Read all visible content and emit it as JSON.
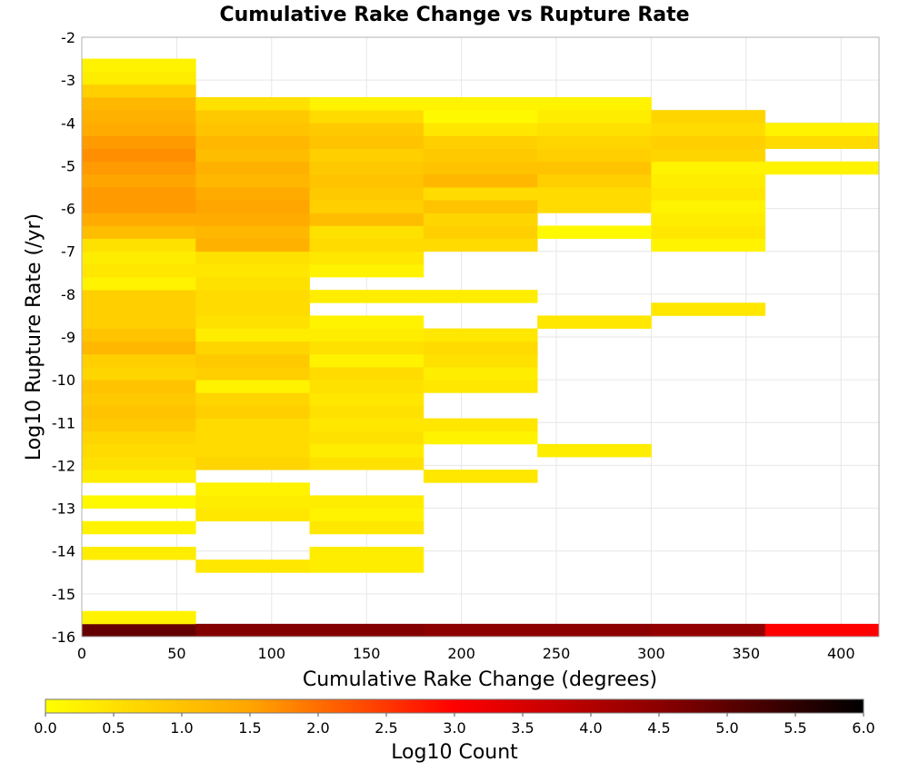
{
  "chart_data": {
    "type": "heatmap",
    "title": "Cumulative Rake Change vs Rupture Rate",
    "xlabel": "Cumulative Rake Change (degrees)",
    "ylabel": "Log10 Rupture Rate (/yr)",
    "xlim": [
      0,
      420
    ],
    "ylim": [
      -16,
      -2
    ],
    "xticks": [
      "0",
      "50",
      "100",
      "150",
      "200",
      "250",
      "300",
      "350",
      "400"
    ],
    "yticks": [
      "-2",
      "-3",
      "-4",
      "-5",
      "-6",
      "-7",
      "-8",
      "-9",
      "-10",
      "-11",
      "-12",
      "-13",
      "-14",
      "-15",
      "-16"
    ],
    "grid": true,
    "x_bin_width": 60,
    "y_bin_height": 0.3,
    "colorbar": {
      "label": "Log10 Count",
      "range": [
        0,
        6
      ],
      "ticks": [
        "0.0",
        "0.5",
        "1.0",
        "1.5",
        "2.0",
        "2.5",
        "3.0",
        "3.5",
        "4.0",
        "4.5",
        "5.0",
        "5.5",
        "6.0"
      ],
      "colors": [
        "#ffff00",
        "#ffa500",
        "#ff0000",
        "#8b0000",
        "#000000"
      ],
      "placement": "bottom"
    },
    "cells_note": "each column: [x_bin_start, [[y_bin_bottom, log10_count], ...]]",
    "cells": [
      [
        0,
        [
          [
            -16.0,
            4.9
          ],
          [
            -15.7,
            0.2
          ],
          [
            -14.2,
            0.3
          ],
          [
            -13.6,
            0.2
          ],
          [
            -13.0,
            0.1
          ],
          [
            -12.4,
            0.3
          ],
          [
            -12.1,
            0.5
          ],
          [
            -11.8,
            0.6
          ],
          [
            -11.5,
            0.7
          ],
          [
            -11.2,
            0.9
          ],
          [
            -10.9,
            1.0
          ],
          [
            -10.6,
            0.9
          ],
          [
            -10.3,
            1.0
          ],
          [
            -10.0,
            0.7
          ],
          [
            -9.7,
            0.8
          ],
          [
            -9.4,
            1.2
          ],
          [
            -9.1,
            1.0
          ],
          [
            -8.8,
            0.8
          ],
          [
            -8.5,
            0.8
          ],
          [
            -8.2,
            0.8
          ],
          [
            -7.9,
            0.2
          ],
          [
            -7.6,
            0.4
          ],
          [
            -7.3,
            0.3
          ],
          [
            -7.0,
            0.5
          ],
          [
            -6.7,
            1.1
          ],
          [
            -6.4,
            1.4
          ],
          [
            -6.1,
            1.6
          ],
          [
            -5.8,
            1.6
          ],
          [
            -5.5,
            1.5
          ],
          [
            -5.2,
            1.6
          ],
          [
            -4.9,
            1.7
          ],
          [
            -4.6,
            1.6
          ],
          [
            -4.3,
            1.4
          ],
          [
            -4.0,
            1.3
          ],
          [
            -3.7,
            1.2
          ],
          [
            -3.4,
            0.8
          ],
          [
            -3.1,
            0.3
          ],
          [
            -2.8,
            0.2
          ]
        ]
      ],
      [
        60,
        [
          [
            -16.0,
            4.6
          ],
          [
            -14.5,
            0.4
          ],
          [
            -13.3,
            0.4
          ],
          [
            -13.0,
            0.3
          ],
          [
            -12.7,
            0.2
          ],
          [
            -12.1,
            0.7
          ],
          [
            -11.8,
            0.6
          ],
          [
            -11.5,
            0.6
          ],
          [
            -11.2,
            0.6
          ],
          [
            -10.9,
            0.8
          ],
          [
            -10.6,
            0.7
          ],
          [
            -10.3,
            0.2
          ],
          [
            -10.0,
            0.8
          ],
          [
            -9.7,
            0.9
          ],
          [
            -9.4,
            0.7
          ],
          [
            -9.1,
            0.3
          ],
          [
            -8.8,
            0.5
          ],
          [
            -8.5,
            0.6
          ],
          [
            -8.2,
            0.6
          ],
          [
            -7.9,
            0.5
          ],
          [
            -7.6,
            0.4
          ],
          [
            -7.3,
            0.5
          ],
          [
            -7.0,
            1.3
          ],
          [
            -6.7,
            1.2
          ],
          [
            -6.4,
            1.4
          ],
          [
            -6.1,
            1.5
          ],
          [
            -5.8,
            1.4
          ],
          [
            -5.5,
            1.2
          ],
          [
            -5.2,
            1.3
          ],
          [
            -4.9,
            1.1
          ],
          [
            -4.6,
            1.2
          ],
          [
            -4.3,
            1.0
          ],
          [
            -4.0,
            0.9
          ],
          [
            -3.7,
            0.5
          ]
        ]
      ],
      [
        120,
        [
          [
            -16.0,
            4.6
          ],
          [
            -14.5,
            0.3
          ],
          [
            -14.2,
            0.3
          ],
          [
            -13.6,
            0.4
          ],
          [
            -13.3,
            0.2
          ],
          [
            -13.0,
            0.3
          ],
          [
            -12.1,
            0.5
          ],
          [
            -11.8,
            0.3
          ],
          [
            -11.5,
            0.5
          ],
          [
            -11.2,
            0.4
          ],
          [
            -10.9,
            0.5
          ],
          [
            -10.6,
            0.4
          ],
          [
            -10.3,
            0.5
          ],
          [
            -10.0,
            0.6
          ],
          [
            -9.7,
            0.2
          ],
          [
            -9.4,
            0.5
          ],
          [
            -9.1,
            0.3
          ],
          [
            -8.8,
            0.2
          ],
          [
            -8.2,
            0.3
          ],
          [
            -7.6,
            0.2
          ],
          [
            -7.3,
            0.4
          ],
          [
            -7.0,
            0.6
          ],
          [
            -6.7,
            0.5
          ],
          [
            -6.4,
            1.1
          ],
          [
            -6.1,
            0.8
          ],
          [
            -5.8,
            0.9
          ],
          [
            -5.5,
            1.0
          ],
          [
            -5.2,
            0.9
          ],
          [
            -4.9,
            0.8
          ],
          [
            -4.6,
            1.0
          ],
          [
            -4.3,
            0.9
          ],
          [
            -4.0,
            0.6
          ],
          [
            -3.7,
            0.2
          ]
        ]
      ],
      [
        180,
        [
          [
            -16.0,
            4.5
          ],
          [
            -12.4,
            0.4
          ],
          [
            -11.5,
            0.2
          ],
          [
            -11.2,
            0.4
          ],
          [
            -10.3,
            0.4
          ],
          [
            -10.0,
            0.3
          ],
          [
            -9.7,
            0.5
          ],
          [
            -9.4,
            0.6
          ],
          [
            -9.1,
            0.4
          ],
          [
            -8.2,
            0.3
          ],
          [
            -7.0,
            0.6
          ],
          [
            -6.7,
            0.8
          ],
          [
            -6.4,
            0.7
          ],
          [
            -6.1,
            1.0
          ],
          [
            -5.8,
            0.6
          ],
          [
            -5.5,
            1.2
          ],
          [
            -5.2,
            1.0
          ],
          [
            -4.9,
            0.9
          ],
          [
            -4.6,
            0.8
          ],
          [
            -4.3,
            0.4
          ],
          [
            -4.0,
            0.1
          ],
          [
            -3.7,
            0.2
          ]
        ]
      ],
      [
        240,
        [
          [
            -16.0,
            4.5
          ],
          [
            -11.8,
            0.3
          ],
          [
            -8.8,
            0.4
          ],
          [
            -6.7,
            0.1
          ],
          [
            -6.1,
            0.6
          ],
          [
            -5.8,
            0.6
          ],
          [
            -5.5,
            0.8
          ],
          [
            -5.2,
            1.0
          ],
          [
            -4.9,
            0.8
          ],
          [
            -4.6,
            0.7
          ],
          [
            -4.3,
            0.5
          ],
          [
            -4.0,
            0.3
          ],
          [
            -3.7,
            0.2
          ]
        ]
      ],
      [
        300,
        [
          [
            -16.0,
            4.4
          ],
          [
            -8.5,
            0.4
          ],
          [
            -7.0,
            0.2
          ],
          [
            -6.7,
            0.4
          ],
          [
            -6.4,
            0.3
          ],
          [
            -6.1,
            0.2
          ],
          [
            -5.8,
            0.4
          ],
          [
            -5.5,
            0.3
          ],
          [
            -5.2,
            0.2
          ],
          [
            -4.9,
            0.7
          ],
          [
            -4.6,
            0.8
          ],
          [
            -4.3,
            0.6
          ],
          [
            -4.0,
            0.7
          ]
        ]
      ],
      [
        360,
        [
          [
            -16.0,
            3.0
          ],
          [
            -5.2,
            0.2
          ],
          [
            -4.6,
            0.6
          ],
          [
            -4.3,
            0.2
          ]
        ]
      ]
    ]
  }
}
